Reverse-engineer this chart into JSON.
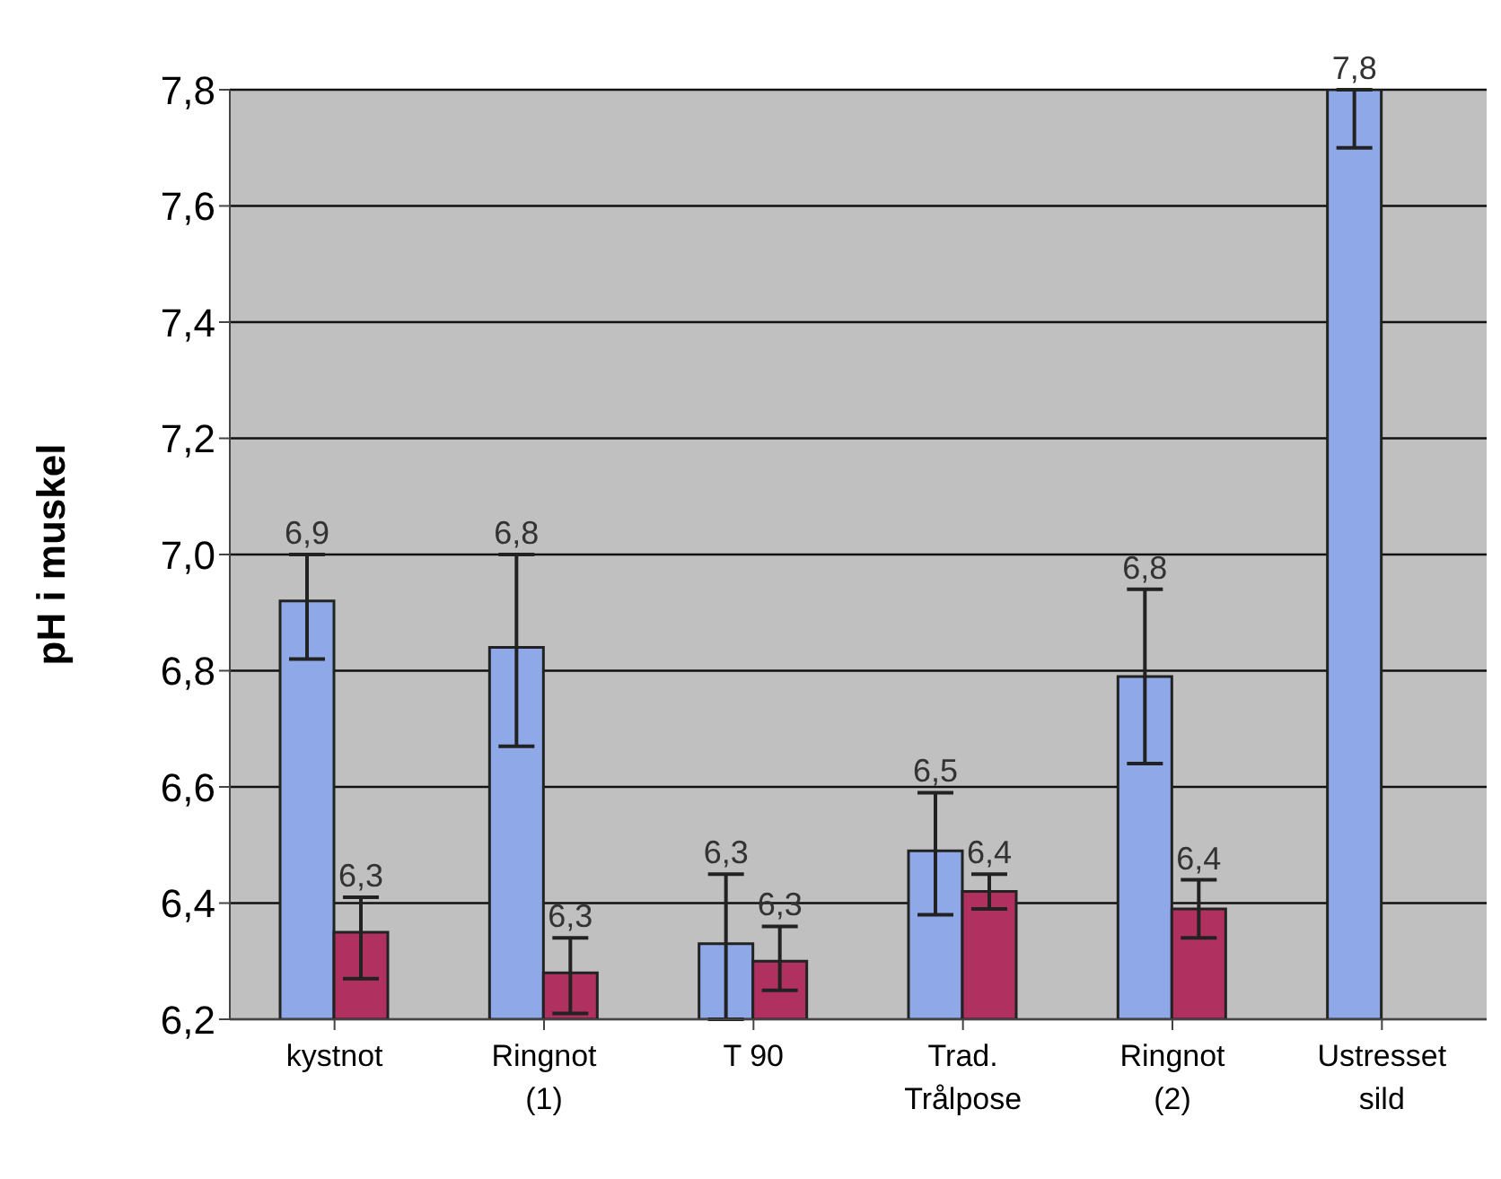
{
  "chart_data": {
    "type": "bar",
    "ylabel": "pH i muskel",
    "categories": [
      "kystnot",
      "Ringnot\n(1)",
      "T 90",
      "Trad.\nTrålpose",
      "Ringnot\n(2)",
      "Ustresset\nsild"
    ],
    "series": [
      {
        "color": "#8fa8e8",
        "values": [
          6.92,
          6.84,
          6.33,
          6.49,
          6.79,
          7.8
        ],
        "errors": [
          [
            6.82,
            7.0
          ],
          [
            6.67,
            7.0
          ],
          [
            6.2,
            6.45
          ],
          [
            6.38,
            6.59
          ],
          [
            6.64,
            6.94
          ],
          [
            7.7,
            7.8
          ]
        ],
        "value_labels": [
          "6,9",
          "6,8",
          "6,3",
          "6,5",
          "6,8",
          "7,8"
        ]
      },
      {
        "color": "#b03060",
        "values": [
          6.35,
          6.28,
          6.3,
          6.42,
          6.39,
          null
        ],
        "errors": [
          [
            6.27,
            6.41
          ],
          [
            6.21,
            6.34
          ],
          [
            6.25,
            6.36
          ],
          [
            6.39,
            6.45
          ],
          [
            6.34,
            6.44
          ],
          null
        ],
        "value_labels": [
          "6,3",
          "6,3",
          "6,3",
          "6,4",
          "6,4",
          null
        ]
      }
    ],
    "ylim": [
      6.2,
      7.8
    ],
    "yticks": [
      {
        "value": 6.2,
        "label": "6,2"
      },
      {
        "value": 6.4,
        "label": "6,4"
      },
      {
        "value": 6.6,
        "label": "6,6"
      },
      {
        "value": 6.8,
        "label": "6,8"
      },
      {
        "value": 7.0,
        "label": "7,0"
      },
      {
        "value": 7.2,
        "label": "7,2"
      },
      {
        "value": 7.4,
        "label": "7,4"
      },
      {
        "value": 7.6,
        "label": "7,6"
      },
      {
        "value": 7.8,
        "label": "7,8"
      }
    ],
    "grid": "y"
  }
}
